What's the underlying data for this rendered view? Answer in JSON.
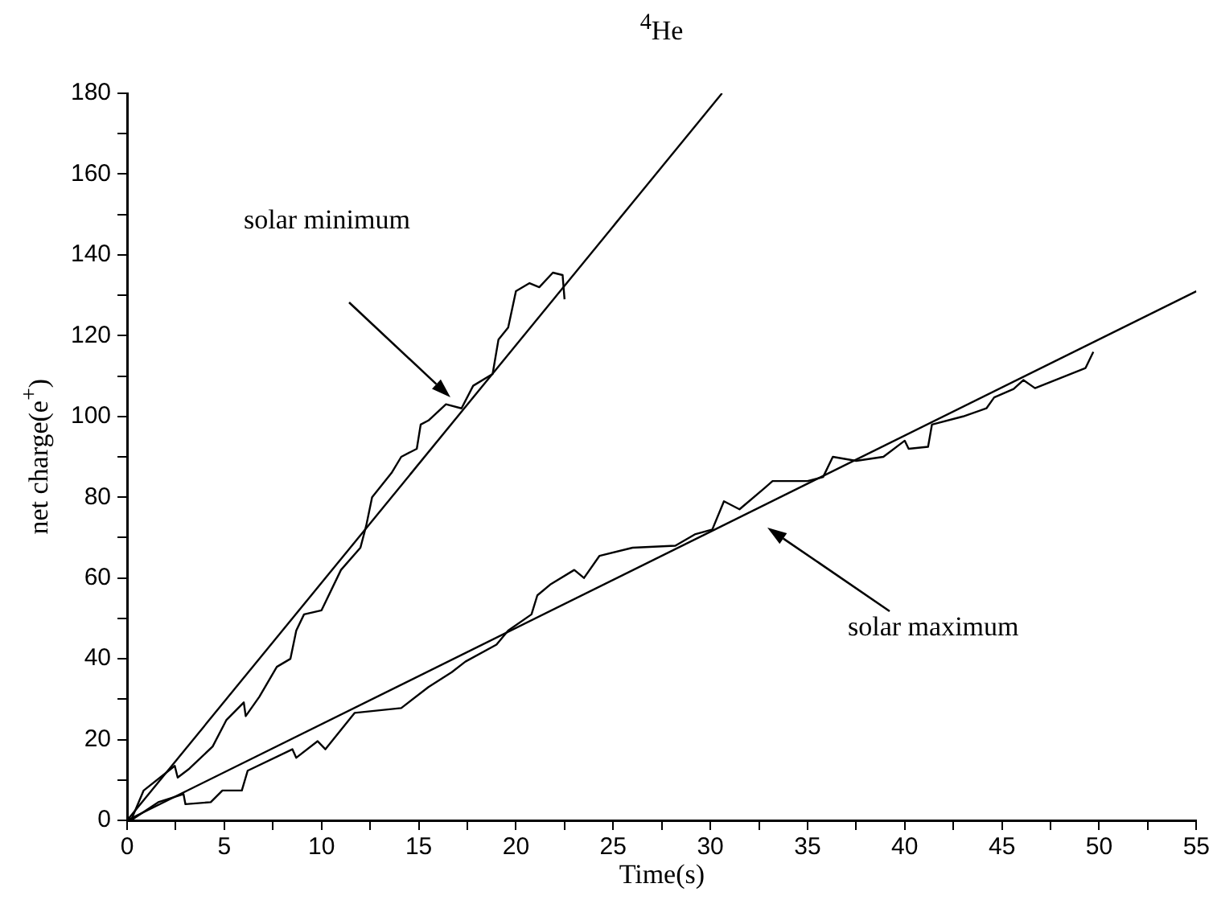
{
  "chart_data": {
    "type": "line",
    "title": "$^{4}$He",
    "xlabel": "Time(s)",
    "ylabel": "net charge(e$^{+}$)",
    "xlim": [
      0,
      55
    ],
    "ylim": [
      0,
      180
    ],
    "xticks": [
      0,
      {
        "value": 2.5,
        "label": null
      },
      5,
      {
        "value": 7.5,
        "label": null
      },
      10,
      {
        "value": 12.5,
        "label": null
      },
      15,
      {
        "value": 17.5,
        "label": null
      },
      20,
      {
        "value": 22.5,
        "label": null
      },
      25,
      {
        "value": 27.5,
        "label": null
      },
      30,
      {
        "value": 32.5,
        "label": null
      },
      35,
      {
        "value": 37.5,
        "label": null
      },
      40,
      {
        "value": 42.5,
        "label": null
      },
      45,
      {
        "value": 47.5,
        "label": null
      },
      50,
      {
        "value": 52.5,
        "label": null
      },
      55
    ],
    "yticks": [
      0,
      {
        "value": 10,
        "label": null
      },
      20,
      {
        "value": 30,
        "label": null
      },
      40,
      {
        "value": 50,
        "label": null
      },
      60,
      {
        "value": 70,
        "label": null
      },
      80,
      {
        "value": 90,
        "label": null
      },
      100,
      {
        "value": 110,
        "label": null
      },
      120,
      {
        "value": 130,
        "label": null
      },
      140,
      {
        "value": 150,
        "label": null
      },
      160,
      {
        "value": 170,
        "label": null
      },
      180
    ],
    "grid": false,
    "legend": false,
    "marker": "none",
    "line_style": "solid",
    "series": [
      {
        "color": "#000000",
        "x": [
          0.2,
          0.85,
          2.45,
          2.6,
          3.2,
          4.4,
          5.1,
          6.0,
          6.1,
          6.8,
          7.7,
          8.4,
          8.7,
          9.1,
          10.0,
          11.0,
          12.0,
          12.3,
          12.6,
          13.6,
          14.1,
          14.9,
          15.1,
          15.5,
          16.4,
          17.2,
          17.8,
          18.8,
          19.1,
          19.6,
          20.0,
          20.7,
          21.2,
          21.9,
          22.4,
          22.5
        ],
        "values": [
          0,
          7.4,
          13.5,
          10.6,
          12.8,
          18.3,
          24.8,
          29.2,
          25.8,
          30.6,
          38,
          40,
          47,
          51,
          52,
          62,
          67.5,
          73,
          80,
          86,
          90,
          92,
          98,
          99,
          103,
          102,
          107.6,
          110.5,
          119,
          122,
          131,
          133,
          132,
          135.6,
          135,
          129
        ]
      },
      {
        "color": "#000000",
        "x": [
          0,
          30.6
        ],
        "values": [
          0,
          180
        ]
      },
      {
        "color": "#000000",
        "x": [
          0.2,
          1.6,
          2.9,
          3.0,
          4.3,
          4.9,
          5.9,
          6.2,
          8.5,
          8.7,
          9.8,
          10.2,
          11.7,
          14.1,
          15.5,
          16.7,
          17.4,
          19.0,
          19.6,
          20.8,
          21.1,
          21.8,
          23.0,
          23.5,
          24.3,
          26.0,
          28.2,
          29.2,
          30.1,
          30.7,
          31.5,
          32.8,
          33.2,
          35.0,
          35.8,
          36.3,
          37.5,
          38.9,
          40.0,
          40.2,
          41.2,
          41.4,
          43.0,
          44.2,
          44.6,
          45.6,
          46.1,
          46.7,
          49.3,
          49.7
        ],
        "values": [
          0,
          4.5,
          6.5,
          4,
          4.5,
          7.4,
          7.4,
          12.3,
          17.6,
          15.5,
          19.6,
          17.6,
          26.6,
          27.8,
          33,
          36.7,
          39.3,
          43.5,
          47,
          51,
          55.7,
          58.5,
          62,
          60,
          65.5,
          67.5,
          68,
          70.8,
          72,
          79,
          77,
          82.3,
          84,
          84,
          85,
          90,
          89,
          90,
          94,
          92,
          92.5,
          98,
          100,
          102,
          104.7,
          106.8,
          109,
          107,
          112,
          116
        ]
      },
      {
        "color": "#000000",
        "x": [
          0,
          55
        ],
        "values": [
          0,
          131
        ]
      }
    ],
    "annotations": [
      "solar minimum",
      "solar maximum"
    ]
  }
}
